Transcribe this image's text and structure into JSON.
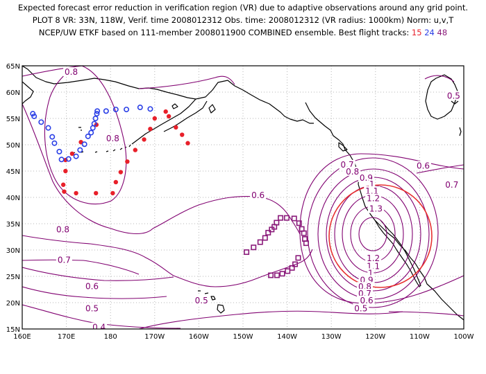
{
  "title": {
    "line1": "Expected forecast error reduction in verification region (VR) due to adaptive observations around any grid point.",
    "line2": "PLOT 8 VR: 33N, 118W, Verif. time 2008012312 Obs. time: 2008012312 (VR radius: 1000km) Norm: u,v,T",
    "line3_prefix": "NCEP/UW ETKF based on 111-member 2008011900 COMBINED ensemble.  Best flight tracks:",
    "track_labels": [
      "15",
      "24",
      "48"
    ]
  },
  "colors": {
    "contour": "#800070",
    "track_15": "#e8202a",
    "track_24": "#2a3fe6",
    "track_48": "#8a1a7a",
    "vr_circle": "#e83030",
    "grid": "#b4b4b4",
    "coast": "#000000"
  },
  "map": {
    "lon_range": [
      160,
      260
    ],
    "lat_range": [
      15,
      65
    ],
    "x_ticks": [
      {
        "v": 160,
        "label": "160E"
      },
      {
        "v": 170,
        "label": "170E"
      },
      {
        "v": 180,
        "label": "180"
      },
      {
        "v": 190,
        "label": "170W"
      },
      {
        "v": 200,
        "label": "160W"
      },
      {
        "v": 210,
        "label": "150W"
      },
      {
        "v": 220,
        "label": "140W"
      },
      {
        "v": 230,
        "label": "130W"
      },
      {
        "v": 240,
        "label": "120W"
      },
      {
        "v": 250,
        "label": "110W"
      },
      {
        "v": 260,
        "label": "100W"
      }
    ],
    "y_ticks": [
      {
        "v": 15,
        "label": "15N"
      },
      {
        "v": 20,
        "label": "20N"
      },
      {
        "v": 25,
        "label": "25N"
      },
      {
        "v": 30,
        "label": "30N"
      },
      {
        "v": 35,
        "label": "35N"
      },
      {
        "v": 40,
        "label": "40N"
      },
      {
        "v": 45,
        "label": "45N"
      },
      {
        "v": 50,
        "label": "50N"
      },
      {
        "v": 55,
        "label": "55N"
      },
      {
        "v": 60,
        "label": "60N"
      },
      {
        "v": 65,
        "label": "65N"
      }
    ],
    "verification_region": {
      "lat": 33,
      "lon": 242,
      "radius_km": 1000
    },
    "contour_labels": [
      {
        "t": "0.8",
        "lon": 171.1,
        "lat": 63.8
      },
      {
        "t": "0.8",
        "lon": 180.5,
        "lat": 51.2
      },
      {
        "t": "0.8",
        "lon": 169.2,
        "lat": 33.9
      },
      {
        "t": "0.7",
        "lon": 169.5,
        "lat": 28.1
      },
      {
        "t": "0.6",
        "lon": 175.8,
        "lat": 23.1
      },
      {
        "t": "0.5",
        "lon": 175.8,
        "lat": 18.9
      },
      {
        "t": "0.4",
        "lon": 177.4,
        "lat": 15.3
      },
      {
        "t": "0.5",
        "lon": 200.6,
        "lat": 20.4
      },
      {
        "t": "0.6",
        "lon": 213.4,
        "lat": 40.4
      },
      {
        "t": "0.5",
        "lon": 257.7,
        "lat": 59.3
      },
      {
        "t": "0.6",
        "lon": 250.8,
        "lat": 46.0
      },
      {
        "t": "0.7",
        "lon": 257.3,
        "lat": 42.4
      },
      {
        "t": "0.7",
        "lon": 233.6,
        "lat": 46.2
      },
      {
        "t": "0.8",
        "lon": 234.8,
        "lat": 44.9
      },
      {
        "t": "0.9",
        "lon": 237.9,
        "lat": 43.7
      },
      {
        "t": "1",
        "lon": 239.2,
        "lat": 42.5
      },
      {
        "t": "1.1",
        "lon": 239.2,
        "lat": 41.2
      },
      {
        "t": "1.2",
        "lon": 239.5,
        "lat": 39.8
      },
      {
        "t": "1.3",
        "lon": 240.1,
        "lat": 37.8
      },
      {
        "t": "1.2",
        "lon": 239.5,
        "lat": 28.4
      },
      {
        "t": "1.1",
        "lon": 239.5,
        "lat": 26.9
      },
      {
        "t": "1",
        "lon": 238.9,
        "lat": 25.6
      },
      {
        "t": "0.9",
        "lon": 238.0,
        "lat": 24.3
      },
      {
        "t": "0.8",
        "lon": 237.6,
        "lat": 23.0
      },
      {
        "t": "0.7",
        "lon": 237.6,
        "lat": 21.7
      },
      {
        "t": "0.6",
        "lon": 238.0,
        "lat": 20.4
      },
      {
        "t": "0.5",
        "lon": 236.7,
        "lat": 18.9
      }
    ],
    "track_15": [
      [
        181.8,
        51.1
      ],
      [
        176.8,
        53.8
      ],
      [
        173.3,
        50.5
      ],
      [
        171.3,
        48.3
      ],
      [
        169.8,
        47.1
      ],
      [
        169.8,
        45.0
      ],
      [
        169.3,
        42.4
      ],
      [
        169.5,
        41.1
      ],
      [
        172.2,
        40.8
      ],
      [
        176.7,
        40.8
      ],
      [
        180.5,
        40.8
      ],
      [
        181.2,
        42.9
      ],
      [
        182.3,
        44.8
      ],
      [
        183.8,
        46.8
      ],
      [
        185.6,
        49.0
      ],
      [
        187.6,
        51.0
      ],
      [
        189.0,
        53.0
      ],
      [
        190.0,
        55.0
      ],
      [
        192.5,
        56.3
      ],
      [
        193.2,
        55.4
      ],
      [
        194.8,
        53.3
      ],
      [
        196.2,
        51.9
      ],
      [
        197.5,
        50.3
      ]
    ],
    "track_24": [
      [
        189.0,
        56.8
      ],
      [
        186.7,
        57.1
      ],
      [
        183.6,
        56.7
      ],
      [
        181.2,
        56.7
      ],
      [
        179.0,
        56.4
      ],
      [
        177.0,
        56.4
      ],
      [
        176.9,
        55.9
      ],
      [
        176.6,
        55.0
      ],
      [
        176.3,
        54.0
      ],
      [
        176.0,
        53.2
      ],
      [
        175.6,
        52.3
      ],
      [
        174.9,
        51.6
      ],
      [
        174.1,
        50.1
      ],
      [
        173.1,
        49.0
      ],
      [
        172.2,
        47.8
      ],
      [
        170.5,
        47.3
      ],
      [
        168.9,
        47.2
      ],
      [
        168.4,
        48.7
      ],
      [
        167.3,
        50.3
      ],
      [
        166.8,
        51.5
      ],
      [
        165.9,
        53.2
      ],
      [
        164.3,
        54.3
      ],
      [
        162.7,
        55.4
      ],
      [
        162.4,
        55.9
      ]
    ],
    "track_48": [
      [
        210.8,
        29.6
      ],
      [
        212.4,
        30.5
      ],
      [
        213.9,
        31.5
      ],
      [
        215.0,
        32.3
      ],
      [
        215.7,
        33.3
      ],
      [
        216.5,
        33.9
      ],
      [
        217.1,
        34.4
      ],
      [
        217.6,
        35.2
      ],
      [
        218.5,
        36.1
      ],
      [
        219.9,
        36.1
      ],
      [
        221.6,
        36.0
      ],
      [
        222.7,
        35.1
      ],
      [
        223.3,
        34.0
      ],
      [
        223.8,
        33.2
      ],
      [
        224.0,
        32.1
      ],
      [
        224.3,
        31.3
      ],
      [
        222.5,
        28.5
      ],
      [
        221.8,
        27.3
      ],
      [
        221.1,
        26.6
      ],
      [
        220.1,
        26.0
      ],
      [
        218.9,
        25.5
      ],
      [
        217.7,
        25.2
      ],
      [
        216.3,
        25.2
      ]
    ]
  }
}
